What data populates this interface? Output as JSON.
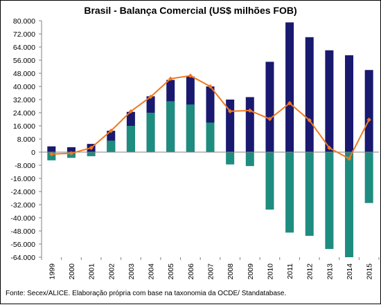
{
  "source_note": "Fonte: Secex/ALICE. Elaboração própria com base na taxonomia da OCDE/ Standatabase.",
  "colors": {
    "series_a": "#191970",
    "series_b": "#1f8c80",
    "line": "#f07820",
    "axis": "#808080"
  },
  "chart_data": {
    "type": "bar",
    "title": "Brasil - Balança Comercial (US$ milhões FOB)",
    "xlabel": "",
    "ylabel": "",
    "ylim": [
      -64000,
      80000
    ],
    "yticks": [
      80000,
      72000,
      64000,
      56000,
      48000,
      40000,
      32000,
      24000,
      16000,
      8000,
      0,
      -8000,
      -16000,
      -24000,
      -32000,
      -40000,
      -48000,
      -56000,
      -64000
    ],
    "ytick_labels": [
      "80.000",
      "72.000",
      "64.000",
      "56.000",
      "48.000",
      "40.000",
      "32.000",
      "24.000",
      "16.000",
      "8.000",
      "0",
      "-8.000",
      "-16.000",
      "-24.000",
      "-32.000",
      "-40.000",
      "-48.000",
      "-56.000",
      "-64.000"
    ],
    "categories": [
      "1999",
      "2000",
      "2001",
      "2002",
      "2003",
      "2004",
      "2005",
      "2006",
      "2007",
      "2008",
      "2009",
      "2010",
      "2011",
      "2012",
      "2013",
      "2014",
      "2015"
    ],
    "grid": false,
    "legend": "none",
    "series": [
      {
        "type": "bar",
        "stacked": "positive",
        "values": [
          3500,
          3000,
          5000,
          13000,
          24500,
          34000,
          44000,
          46000,
          40000,
          32000,
          33500,
          55000,
          79000,
          70000,
          62000,
          59000,
          50000
        ]
      },
      {
        "type": "bar",
        "values": [
          -5000,
          -3500,
          -2500,
          7000,
          16000,
          24000,
          31000,
          29000,
          18000,
          -7500,
          -8500,
          -35000,
          -49000,
          -51000,
          -59000,
          -64000,
          -31000
        ]
      },
      {
        "type": "line",
        "values": [
          -1200,
          -700,
          2600,
          13000,
          24800,
          33700,
          44700,
          46500,
          40000,
          24900,
          25300,
          20200,
          29800,
          19400,
          2600,
          -4000,
          19700
        ]
      }
    ]
  }
}
